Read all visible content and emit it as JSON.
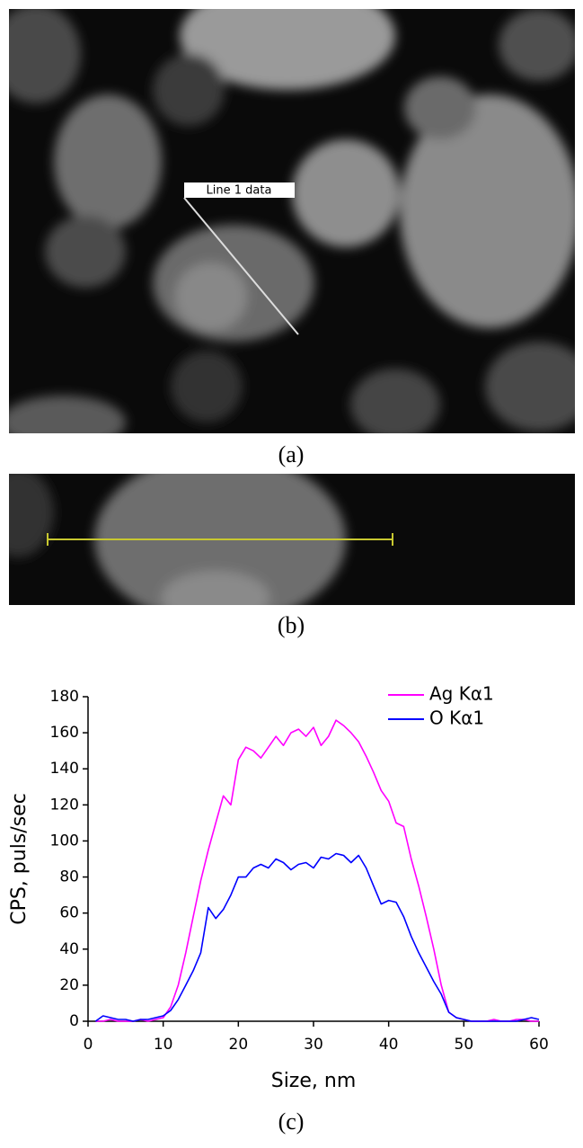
{
  "figure": {
    "panel_labels": [
      "(a)",
      "(b)",
      "(c)"
    ],
    "image_label": "Line 1 data"
  },
  "chart_data": {
    "type": "line",
    "x_label": "Size, nm",
    "y_label": "CPS, puls/sec",
    "x": [
      1,
      2,
      3,
      4,
      5,
      6,
      7,
      8,
      9,
      10,
      11,
      12,
      13,
      14,
      15,
      16,
      17,
      18,
      19,
      20,
      21,
      22,
      23,
      24,
      25,
      26,
      27,
      28,
      29,
      30,
      31,
      32,
      33,
      34,
      35,
      36,
      37,
      38,
      39,
      40,
      41,
      42,
      43,
      44,
      45,
      46,
      47,
      48,
      49,
      50,
      51,
      52,
      53,
      54,
      55,
      56,
      57,
      58,
      59,
      60
    ],
    "series": [
      {
        "name": "Ag Kα1",
        "color": "#ff00ff",
        "values": [
          0,
          0,
          1,
          0,
          0,
          0,
          1,
          0,
          1,
          2,
          8,
          20,
          38,
          58,
          78,
          95,
          110,
          125,
          120,
          145,
          152,
          150,
          146,
          152,
          158,
          153,
          160,
          162,
          158,
          163,
          153,
          158,
          167,
          164,
          160,
          155,
          147,
          138,
          128,
          122,
          110,
          108,
          90,
          75,
          58,
          40,
          20,
          5,
          2,
          1,
          0,
          0,
          0,
          1,
          0,
          0,
          1,
          1,
          0,
          0
        ]
      },
      {
        "name": "O Kα1",
        "color": "#0000ff",
        "values": [
          0,
          3,
          2,
          1,
          1,
          0,
          1,
          1,
          2,
          3,
          6,
          12,
          20,
          28,
          38,
          63,
          57,
          62,
          70,
          80,
          80,
          85,
          87,
          85,
          90,
          88,
          84,
          87,
          88,
          85,
          91,
          90,
          93,
          92,
          88,
          92,
          85,
          75,
          65,
          67,
          66,
          58,
          47,
          38,
          30,
          22,
          15,
          5,
          2,
          1,
          0,
          0,
          0,
          0,
          0,
          0,
          0,
          1,
          2,
          1
        ]
      }
    ],
    "xlim": [
      0,
      60
    ],
    "xticks": [
      0,
      10,
      20,
      30,
      40,
      50,
      60
    ],
    "ylim": [
      0,
      180
    ],
    "yticks": [
      0,
      20,
      40,
      60,
      80,
      100,
      120,
      140,
      160,
      180
    ],
    "legend": "top-right"
  }
}
